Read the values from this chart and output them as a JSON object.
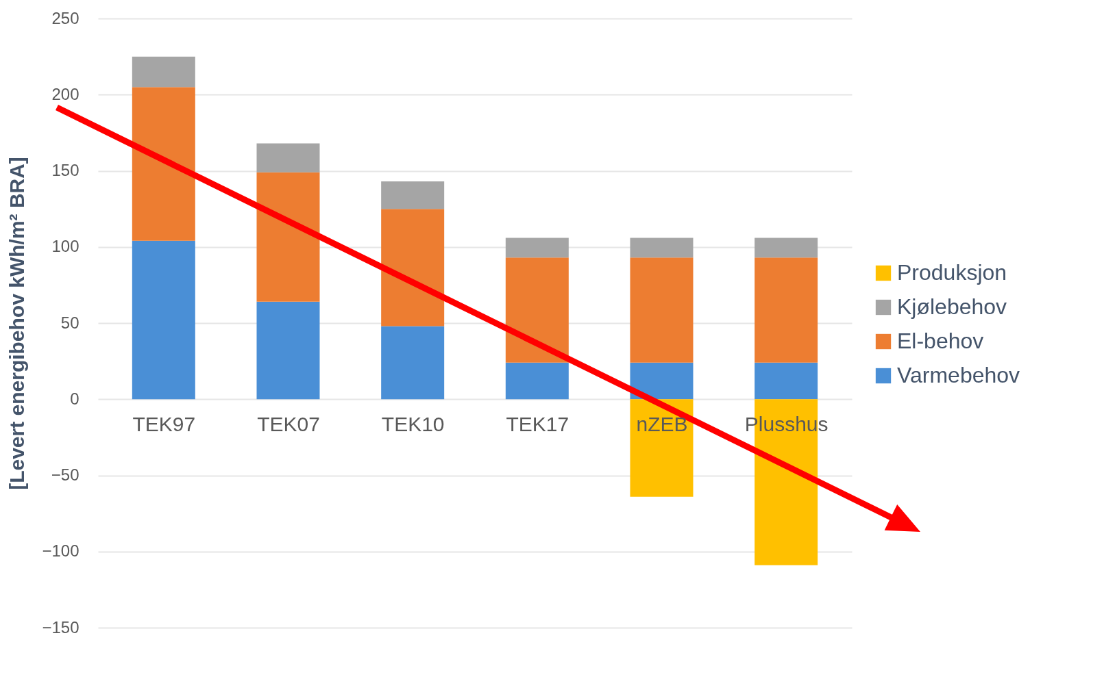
{
  "chart_data": {
    "type": "bar",
    "stacked": true,
    "ylabel": "[Levert energibehov kWh/m² BRA]",
    "categories": [
      "TEK97",
      "TEK07",
      "TEK10",
      "TEK17",
      "nZEB",
      "Plusshus"
    ],
    "series": [
      {
        "name": "Varmebehov",
        "color": "#4a8fd6",
        "values": [
          104,
          64,
          48,
          24,
          24,
          24
        ]
      },
      {
        "name": "El-behov",
        "color": "#ed7d31",
        "values": [
          101,
          85,
          77,
          69,
          69,
          69
        ]
      },
      {
        "name": "Kjølebehov",
        "color": "#a5a5a5",
        "values": [
          20,
          19,
          18,
          13,
          13,
          13
        ]
      },
      {
        "name": "Produksjon",
        "color": "#ffc000",
        "values": [
          null,
          null,
          null,
          null,
          -64,
          -109
        ]
      }
    ],
    "ylim": [
      -150,
      250
    ],
    "yticks": [
      -150,
      -100,
      -50,
      0,
      50,
      100,
      150,
      200,
      250
    ],
    "grid": "y",
    "legend": "right"
  }
}
